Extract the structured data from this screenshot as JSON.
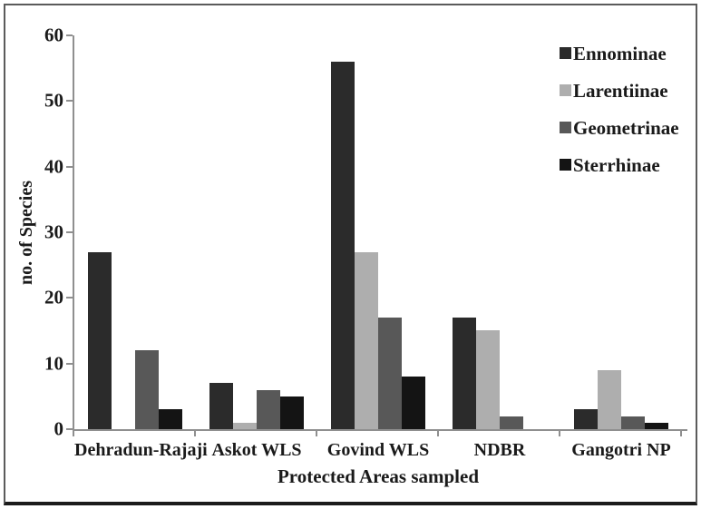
{
  "chart_data": {
    "type": "bar",
    "title": "",
    "xlabel": "Protected Areas sampled",
    "ylabel": "no. of Species",
    "categories": [
      "Dehradun-Rajaji",
      "Askot WLS",
      "Govind WLS",
      "NDBR",
      "Gangotri NP"
    ],
    "series": [
      {
        "name": "Ennominae",
        "color": "#2b2b2b",
        "values": [
          27,
          7,
          56,
          17,
          3
        ]
      },
      {
        "name": "Larentiinae",
        "color": "#aeaeae",
        "values": [
          0,
          1,
          27,
          15,
          9
        ]
      },
      {
        "name": "Geometrinae",
        "color": "#585858",
        "values": [
          12,
          6,
          17,
          2,
          2
        ]
      },
      {
        "name": "Sterrhinae",
        "color": "#141414",
        "values": [
          3,
          5,
          8,
          0,
          1
        ]
      }
    ],
    "ylim": [
      0,
      60
    ],
    "yticks": [
      0,
      10,
      20,
      30,
      40,
      50,
      60
    ],
    "grid": false,
    "legend_position": "top-right"
  },
  "colors": {
    "axis": "#8f8f8f",
    "frame": "#5b5b5b",
    "frame_bottom": "#1b1b1b",
    "text": "#1a1a1a",
    "background": "#ffffff"
  }
}
